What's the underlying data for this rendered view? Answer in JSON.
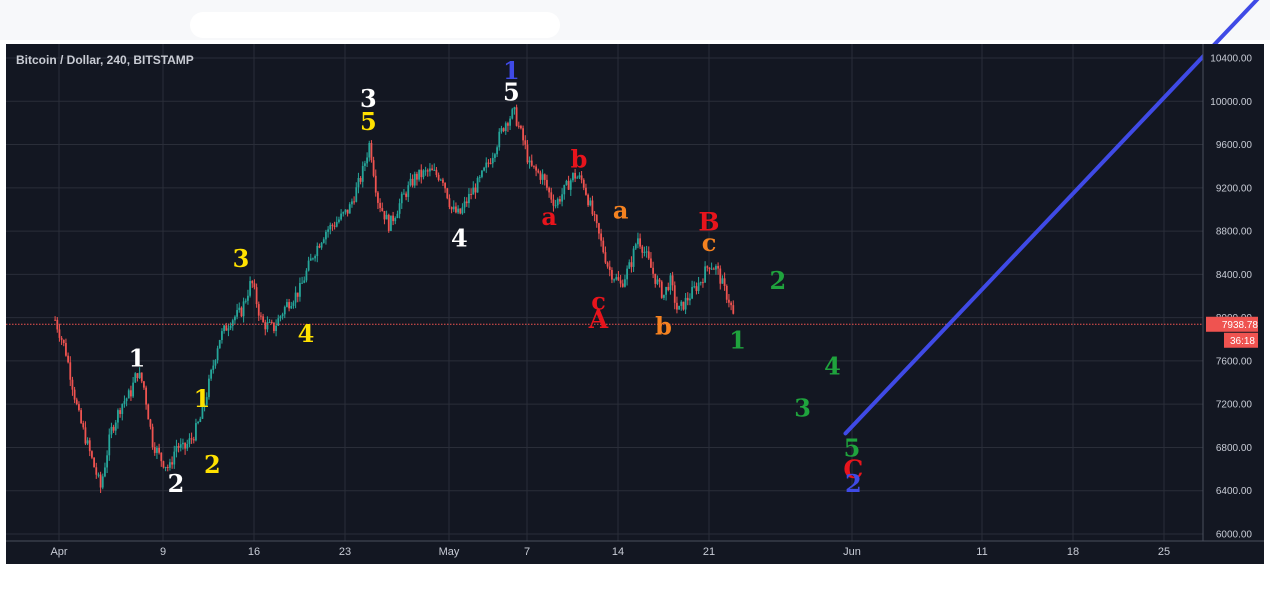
{
  "chart_data": {
    "type": "candlestick",
    "title": "Bitcoin / Dollar, 240, BITSTAMP",
    "price_axis": {
      "ticks": [
        6000,
        6400,
        6800,
        7200,
        7600,
        8000,
        8400,
        8800,
        9200,
        9600,
        10000,
        10400
      ],
      "tick_labels": [
        "6000.00",
        "6400.00",
        "6800.00",
        "7200.00",
        "7600.00",
        "8000.00",
        "8400.00",
        "8800.00",
        "9200.00",
        "9600.00",
        "10000.00",
        "10400.00"
      ],
      "range": [
        5920,
        10440
      ]
    },
    "time_axis": {
      "ticks": [
        {
          "label": "Apr",
          "day": 1
        },
        {
          "label": "9",
          "day": 9
        },
        {
          "label": "16",
          "day": 16
        },
        {
          "label": "23",
          "day": 23
        },
        {
          "label": "May",
          "day": 31
        },
        {
          "label": "7",
          "day": 37
        },
        {
          "label": "14",
          "day": 44
        },
        {
          "label": "21",
          "day": 51
        },
        {
          "label": "Jun",
          "day": 62
        },
        {
          "label": "11",
          "day": 72
        },
        {
          "label": "18",
          "day": 79
        },
        {
          "label": "25",
          "day": 86
        }
      ],
      "day_range": [
        0.6,
        88
      ]
    },
    "last_price": "7938.78",
    "countdown": "36:18",
    "colors": {
      "background": "#131722",
      "up": "#26a69a",
      "down": "#ef5350",
      "price_line": "#ef5350",
      "projection": "#3f4ae6",
      "grid": "#2a2e39"
    },
    "price_path": [
      [
        0.7,
        7980
      ],
      [
        1.5,
        7700
      ],
      [
        2.5,
        7100
      ],
      [
        3.5,
        6700
      ],
      [
        4.2,
        6430
      ],
      [
        5.0,
        6950
      ],
      [
        5.8,
        7200
      ],
      [
        6.5,
        7300
      ],
      [
        7.0,
        7500
      ],
      [
        7.5,
        7380
      ],
      [
        8.2,
        6850
      ],
      [
        8.8,
        6700
      ],
      [
        9.5,
        6600
      ],
      [
        10.0,
        6820
      ],
      [
        10.6,
        6780
      ],
      [
        11.3,
        6900
      ],
      [
        12.0,
        7100
      ],
      [
        13.3,
        7800
      ],
      [
        14.2,
        7980
      ],
      [
        15.0,
        8050
      ],
      [
        15.8,
        8340
      ],
      [
        16.6,
        7950
      ],
      [
        17.5,
        7900
      ],
      [
        18.5,
        8120
      ],
      [
        19.5,
        8250
      ],
      [
        20.6,
        8600
      ],
      [
        21.5,
        8800
      ],
      [
        22.3,
        8880
      ],
      [
        23.3,
        9000
      ],
      [
        24.3,
        9320
      ],
      [
        24.9,
        9620
      ],
      [
        25.5,
        9100
      ],
      [
        26.4,
        8850
      ],
      [
        27.4,
        9100
      ],
      [
        28.4,
        9300
      ],
      [
        29.5,
        9350
      ],
      [
        30.5,
        9300
      ],
      [
        31.2,
        9000
      ],
      [
        31.8,
        8950
      ],
      [
        32.7,
        9150
      ],
      [
        33.3,
        9250
      ],
      [
        34.3,
        9500
      ],
      [
        35.3,
        9800
      ],
      [
        36.0,
        9900
      ],
      [
        36.8,
        9600
      ],
      [
        37.2,
        9400
      ],
      [
        38.2,
        9300
      ],
      [
        38.7,
        9150
      ],
      [
        39.2,
        9050
      ],
      [
        40.0,
        9200
      ],
      [
        40.6,
        9320
      ],
      [
        41.3,
        9260
      ],
      [
        42.3,
        8850
      ],
      [
        43.3,
        8450
      ],
      [
        44.2,
        8300
      ],
      [
        45.0,
        8500
      ],
      [
        45.5,
        8750
      ],
      [
        45.9,
        8650
      ],
      [
        46.8,
        8380
      ],
      [
        47.5,
        8200
      ],
      [
        48.0,
        8350
      ],
      [
        48.6,
        8050
      ],
      [
        49.5,
        8200
      ],
      [
        50.4,
        8350
      ],
      [
        51.0,
        8500
      ],
      [
        51.6,
        8450
      ],
      [
        52.2,
        8250
      ],
      [
        52.6,
        8150
      ],
      [
        53.0,
        7950
      ]
    ],
    "wave_labels": [
      {
        "text": "1",
        "color": "#ffffff",
        "day": 7.0,
        "price": 7620
      },
      {
        "text": "2",
        "color": "#ffffff",
        "day": 10.0,
        "price": 6460
      },
      {
        "text": "1",
        "color": "#ffe100",
        "day": 12.0,
        "price": 7250
      },
      {
        "text": "2",
        "color": "#ffe100",
        "day": 12.8,
        "price": 6640
      },
      {
        "text": "3",
        "color": "#ffe100",
        "day": 15.0,
        "price": 8540
      },
      {
        "text": "4",
        "color": "#ffe100",
        "day": 20.0,
        "price": 7850
      },
      {
        "text": "3",
        "color": "#ffffff",
        "day": 24.8,
        "price": 10020
      },
      {
        "text": "5",
        "color": "#ffe100",
        "day": 24.8,
        "price": 9810
      },
      {
        "text": "4",
        "color": "#ffffff",
        "day": 31.8,
        "price": 8730
      },
      {
        "text": "1",
        "color": "#3f4ae6",
        "day": 35.8,
        "price": 10280
      },
      {
        "text": "5",
        "color": "#ffffff",
        "day": 35.8,
        "price": 10080
      },
      {
        "text": "b",
        "color": "#e8141c",
        "day": 41.0,
        "price": 9460
      },
      {
        "text": "a",
        "color": "#e8141c",
        "day": 38.7,
        "price": 8930
      },
      {
        "text": "a",
        "color": "#f58220",
        "day": 44.2,
        "price": 8990
      },
      {
        "text": "c",
        "color": "#e8141c",
        "day": 42.5,
        "price": 8150
      },
      {
        "text": "A",
        "color": "#e8141c",
        "day": 42.5,
        "price": 7980
      },
      {
        "text": "b",
        "color": "#f58220",
        "day": 47.5,
        "price": 7920
      },
      {
        "text": "B",
        "color": "#e8141c",
        "day": 51.0,
        "price": 8880
      },
      {
        "text": "c",
        "color": "#f58220",
        "day": 51.0,
        "price": 8690
      },
      {
        "text": "2",
        "color": "#1fa33d",
        "day": 56.3,
        "price": 8340
      },
      {
        "text": "1",
        "color": "#1fa33d",
        "day": 53.2,
        "price": 7790
      },
      {
        "text": "4",
        "color": "#1fa33d",
        "day": 60.5,
        "price": 7550
      },
      {
        "text": "3",
        "color": "#1fa33d",
        "day": 58.2,
        "price": 7160
      },
      {
        "text": "5",
        "color": "#1fa33d",
        "day": 62.0,
        "price": 6790
      },
      {
        "text": "C",
        "color": "#e8141c",
        "day": 62.1,
        "price": 6590
      },
      {
        "text": "2",
        "color": "#3f4ae6",
        "day": 62.1,
        "price": 6460
      }
    ],
    "projection": {
      "from": {
        "day": 61.5,
        "price": 6930
      },
      "to": {
        "day": 96,
        "price": 11300
      }
    }
  }
}
